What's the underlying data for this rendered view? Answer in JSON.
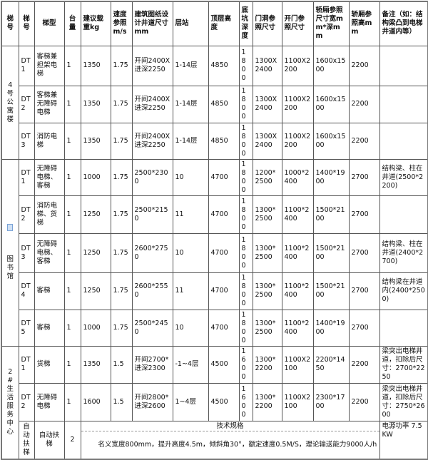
{
  "headers": [
    "梯号",
    "梯号",
    "梯型",
    "台量",
    "建议载重kg",
    "速度参照m/s",
    "建筑图纸设计井道尺寸mm",
    "层站",
    "顶层高度",
    "底坑深度",
    "门洞参照尺寸",
    "开门参照尺寸",
    "轿厢参照尺寸宽mm*深mm",
    "轿厢参照高mm",
    "备注（如：结构梁凸到电梯井道内等）"
  ],
  "groups": [
    {
      "name": "4号公寓楼",
      "rows": [
        [
          "DT1",
          "客梯兼担架电梯",
          "1",
          "1350",
          "1.75",
          "开间2400X进深2250",
          "1-14层",
          "4850",
          "1800",
          "1300X2400",
          "1100X2200",
          "1600x1500",
          "2200",
          ""
        ],
        [
          "DT2",
          "客梯兼无障碍电梯",
          "1",
          "1350",
          "1.75",
          "开间2400X进深2250",
          "1-14层",
          "4850",
          "1800",
          "1300X2400",
          "1100X2200",
          "1600x1500",
          "2200",
          ""
        ],
        [
          "DT3",
          "消防电梯",
          "1",
          "1350",
          "1.75",
          "开间2400X进深2250",
          "1-14层",
          "4850",
          "1800",
          "1300X2400",
          "1100X2200",
          "1600x1500",
          "2200",
          ""
        ]
      ]
    },
    {
      "name": "图书馆",
      "rows": [
        [
          "DT1",
          "无障碍电梯、客梯",
          "1",
          "1000",
          "1.75",
          "2500*2300",
          "10",
          "4700",
          "1800",
          "1200*2500",
          "1000*2400",
          "1400*1900",
          "2700",
          "结构梁、柱在井道(2500*2200)"
        ],
        [
          "DT2",
          "消防电梯、货梯",
          "1",
          "1250",
          "1.75",
          "2500*2150",
          "11",
          "4700",
          "1800",
          "1300*2500",
          "1100*2400",
          "1500*2100",
          "2700",
          ""
        ],
        [
          "DT3",
          "无障碍电梯、客梯",
          "1",
          "1250",
          "1.75",
          "2600*2750",
          "10",
          "4700",
          "1800",
          "1300*2500",
          "1100*2400",
          "1500*2100",
          "2700",
          "结构梁、柱在井道(2400*2700)"
        ],
        [
          "DT4",
          "客梯",
          "1",
          "1250",
          "1.75",
          "2600*2550",
          "11",
          "4700",
          "1800",
          "1300*2500",
          "1100*2400",
          "1500*2100",
          "2700",
          "结构梁在井道内(2400*2500)"
        ],
        [
          "DT5",
          "客梯",
          "1",
          "1000",
          "1.75",
          "2500*2450",
          "10",
          "4700",
          "1800",
          "1300*2500",
          "1100*2400",
          "1400*1900",
          "2700",
          ""
        ]
      ]
    },
    {
      "name": "2#生活服务中心",
      "rows": [
        [
          "DT1",
          "货梯",
          "1",
          "1350",
          "1.5",
          "开间2700*进深2300",
          "-1~4层",
          "4500",
          "1600",
          "1300*2200",
          "1100X2100",
          "2200*1450",
          "2200",
          "梁突出电梯井道，扣除后尺寸：2700*2250"
        ],
        [
          "DT2",
          "无障碍电梯",
          "1",
          "1600",
          "1.5",
          "开间2800*进深2600",
          "1~4层",
          "4500",
          "1600",
          "1300*2200",
          "1100X2100",
          "2300*1700",
          "2200",
          "梁突出电梯井道，扣除后尺寸：2750*2600"
        ]
      ]
    }
  ],
  "escalator": {
    "id": "自动扶梯",
    "type": "自动扶梯",
    "count": "2",
    "spec_title": "技术规格",
    "spec": "名义宽度800mm，提升高度4.5m，倾斜角30°，额定速度0.5M/S，理论输送能力9000人/h",
    "power": "电源功率 7.5KW"
  }
}
